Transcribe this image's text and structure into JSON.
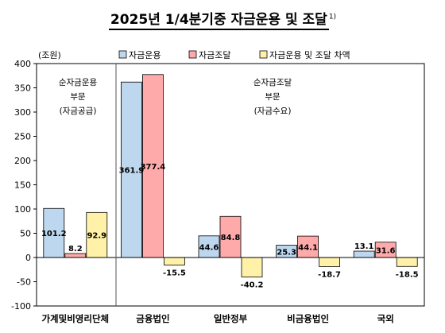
{
  "chart_data": {
    "type": "bar",
    "title": "2025년 1/4분기중 자금운용 및 조달",
    "title_note": "1)",
    "ylabel": "(조원)",
    "ylim": [
      -100,
      400
    ],
    "yticks": [
      -100,
      -50,
      0,
      50,
      100,
      150,
      200,
      250,
      300,
      350,
      400
    ],
    "grid": false,
    "legend": "top",
    "categories": [
      "가계및비영리단체",
      "금융법인",
      "일반정부",
      "비금융법인",
      "국외"
    ],
    "series": [
      {
        "name": "자금운용",
        "color": "#bdd7ee",
        "values": [
          101.2,
          361.9,
          44.6,
          25.3,
          13.1
        ]
      },
      {
        "name": "자금조달",
        "color": "#ffaaaa",
        "values": [
          8.2,
          377.4,
          84.8,
          44.1,
          31.6
        ]
      },
      {
        "name": "자금운용 및 조달 차액",
        "color": "#fff2a8",
        "values": [
          92.9,
          -15.5,
          -40.2,
          -18.7,
          -18.5
        ]
      }
    ],
    "annotations": [
      {
        "text": [
          "순자금운용",
          "부문",
          "(자금공급)"
        ]
      },
      {
        "text": [
          "순자금조달",
          "부문",
          "(자금수요)"
        ]
      }
    ]
  }
}
